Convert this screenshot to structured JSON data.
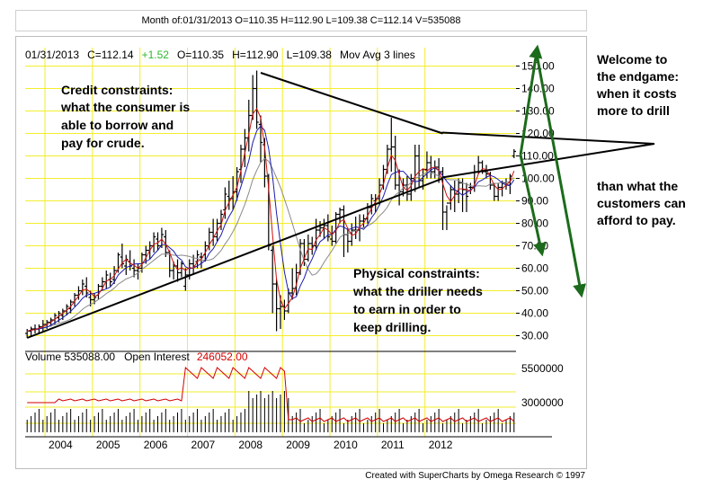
{
  "header": {
    "title": "Month of:01/31/2013 O=110.35 H=112.90 L=109.38 C=112.14 V=535088"
  },
  "info": {
    "date": "01/31/2013",
    "close": "C=112.14",
    "change": "+1.52",
    "open": "O=110.35",
    "high": "H=112.90",
    "low": "L=109.38",
    "study": "Mov Avg 3 lines"
  },
  "volume_info": {
    "volume": "Volume  535088.00",
    "oi_label": "Open Interest",
    "oi_value": "246052.00"
  },
  "annotations": {
    "credit": [
      "Credit constraints:",
      "what the consumer is",
      "able to borrow and",
      "pay for crude."
    ],
    "physical": [
      "Physical constraints:",
      "what the driller needs",
      "to earn in order to",
      "keep drilling."
    ],
    "right_top": [
      "Welcome to",
      "the endgame:",
      "when it costs",
      "more to drill"
    ],
    "right_bottom": [
      "than what the",
      "customers can",
      "afford to pay."
    ]
  },
  "footer": {
    "credit": "Created with SuperCharts by Omega Research © 1997"
  },
  "colors": {
    "grid": "#f2ee2c",
    "ma_fast": "#cc1111",
    "ma_mid": "#1a1ab0",
    "ma_slow": "#8a8a8a",
    "arrow": "#1c6b1c",
    "change": "#2db82d",
    "oi": "#d40000"
  },
  "chart_data": [
    {
      "type": "candlestick",
      "period": "monthly",
      "title": "Month of:01/31/2013 O=110.35 H=112.90 L=109.38 C=112.14 V=535088",
      "y_ticks": [
        150,
        140,
        130,
        120,
        110,
        100,
        90,
        80,
        70,
        60,
        50,
        40,
        30
      ],
      "y_tick_labels": [
        "150.00",
        "140.00",
        "130.00",
        "120.00",
        "110.00",
        "100.00",
        "90.00",
        "80.00",
        "70.00",
        "60.00",
        "50.00",
        "40.00",
        "30.00"
      ],
      "ylim": [
        25,
        155
      ],
      "x_tick_labels": [
        "2004",
        "2005",
        "2006",
        "2007",
        "2008",
        "2009",
        "2010",
        "2011",
        "2012"
      ],
      "x_start": "2003-08",
      "bars": [
        [
          31,
          33,
          29,
          32
        ],
        [
          32,
          34,
          30,
          33
        ],
        [
          33,
          35,
          31,
          33
        ],
        [
          33,
          35,
          31,
          34
        ],
        [
          34,
          37,
          32,
          35
        ],
        [
          35,
          37,
          33,
          36
        ],
        [
          36,
          38,
          34,
          37
        ],
        [
          37,
          40,
          35,
          39
        ],
        [
          38,
          41,
          36,
          40
        ],
        [
          39,
          42,
          37,
          41
        ],
        [
          41,
          44,
          39,
          43
        ],
        [
          42,
          46,
          40,
          45
        ],
        [
          45,
          49,
          43,
          48
        ],
        [
          48,
          52,
          46,
          50
        ],
        [
          50,
          55,
          48,
          53
        ],
        [
          52,
          56,
          47,
          49
        ],
        [
          47,
          50,
          43,
          46
        ],
        [
          46,
          49,
          44,
          47
        ],
        [
          48,
          53,
          46,
          52
        ],
        [
          52,
          56,
          50,
          54
        ],
        [
          54,
          59,
          51,
          57
        ],
        [
          55,
          58,
          52,
          54
        ],
        [
          55,
          61,
          53,
          59
        ],
        [
          59,
          67,
          58,
          66
        ],
        [
          65,
          71,
          60,
          62
        ],
        [
          61,
          66,
          57,
          64
        ],
        [
          63,
          68,
          59,
          61
        ],
        [
          60,
          64,
          56,
          59
        ],
        [
          59,
          62,
          55,
          60
        ],
        [
          60,
          67,
          58,
          66
        ],
        [
          66,
          70,
          62,
          68
        ],
        [
          68,
          72,
          64,
          70
        ],
        [
          70,
          76,
          67,
          74
        ],
        [
          73,
          76,
          68,
          70
        ],
        [
          70,
          78,
          69,
          75
        ],
        [
          74,
          77,
          65,
          67
        ],
        [
          67,
          68,
          56,
          59
        ],
        [
          59,
          63,
          55,
          61
        ],
        [
          61,
          64,
          54,
          58
        ],
        [
          58,
          63,
          56,
          62
        ],
        [
          52,
          60,
          50,
          57
        ],
        [
          57,
          64,
          55,
          62
        ],
        [
          62,
          66,
          57,
          61
        ],
        [
          63,
          68,
          60,
          66
        ],
        [
          65,
          67,
          60,
          65
        ],
        [
          66,
          72,
          63,
          70
        ],
        [
          70,
          78,
          68,
          76
        ],
        [
          76,
          82,
          70,
          74
        ],
        [
          74,
          82,
          72,
          80
        ],
        [
          80,
          86,
          77,
          84
        ],
        [
          86,
          96,
          82,
          93
        ],
        [
          92,
          99,
          86,
          91
        ],
        [
          91,
          101,
          86,
          94
        ],
        [
          94,
          105,
          90,
          103
        ],
        [
          104,
          115,
          98,
          113
        ],
        [
          113,
          122,
          105,
          118
        ],
        [
          118,
          135,
          112,
          128
        ],
        [
          128,
          146,
          126,
          140
        ],
        [
          140,
          148,
          122,
          125
        ],
        [
          124,
          128,
          107,
          116
        ],
        [
          115,
          118,
          96,
          101
        ],
        [
          101,
          102,
          68,
          70
        ],
        [
          68,
          70,
          40,
          53
        ],
        [
          53,
          55,
          32,
          42
        ],
        [
          42,
          48,
          33,
          43
        ],
        [
          43,
          46,
          37,
          41
        ],
        [
          41,
          51,
          40,
          49
        ],
        [
          49,
          60,
          46,
          51
        ],
        [
          51,
          62,
          48,
          58
        ],
        [
          58,
          73,
          57,
          71
        ],
        [
          71,
          73,
          61,
          64
        ],
        [
          64,
          75,
          63,
          71
        ],
        [
          71,
          74,
          66,
          70
        ],
        [
          70,
          82,
          68,
          77
        ],
        [
          77,
          81,
          74,
          78
        ],
        [
          78,
          82,
          73,
          79
        ],
        [
          79,
          84,
          72,
          74
        ],
        [
          73,
          79,
          70,
          72
        ],
        [
          72,
          85,
          71,
          84
        ],
        [
          84,
          87,
          80,
          86
        ],
        [
          86,
          88,
          65,
          75
        ],
        [
          75,
          78,
          67,
          72
        ],
        [
          72,
          80,
          70,
          77
        ],
        [
          77,
          83,
          73,
          77
        ],
        [
          77,
          84,
          72,
          81
        ],
        [
          81,
          84,
          78,
          82
        ],
        [
          82,
          89,
          80,
          87
        ],
        [
          87,
          93,
          84,
          91
        ],
        [
          90,
          93,
          85,
          91
        ],
        [
          91,
          100,
          88,
          97
        ],
        [
          97,
          106,
          95,
          104
        ],
        [
          104,
          115,
          102,
          113
        ],
        [
          113,
          127,
          103,
          114
        ],
        [
          114,
          119,
          95,
          97
        ],
        [
          97,
          104,
          88,
          94
        ],
        [
          94,
          100,
          92,
          97
        ],
        [
          97,
          101,
          90,
          93
        ],
        [
          93,
          102,
          90,
          100
        ],
        [
          100,
          115,
          94,
          110
        ],
        [
          110,
          115,
          96,
          99
        ],
        [
          99,
          104,
          95,
          104
        ],
        [
          104,
          112,
          100,
          107
        ],
        [
          107,
          110,
          100,
          103
        ],
        [
          103,
          108,
          100,
          105
        ],
        [
          105,
          109,
          98,
          103
        ],
        [
          103,
          105,
          77,
          85
        ],
        [
          85,
          88,
          77,
          89
        ],
        [
          89,
          97,
          86,
          95
        ],
        [
          95,
          99,
          85,
          93
        ],
        [
          93,
          100,
          89,
          98
        ],
        [
          98,
          100,
          85,
          95
        ],
        [
          95,
          98,
          85,
          92
        ],
        [
          96,
          98,
          93,
          96
        ],
        [
          96,
          106,
          94,
          103
        ],
        [
          103,
          110,
          102,
          107
        ],
        [
          107,
          108,
          102,
          103
        ],
        [
          103,
          106,
          100,
          102
        ],
        [
          102,
          103,
          95,
          97
        ],
        [
          97,
          98,
          90,
          92
        ],
        [
          92,
          98,
          90,
          96
        ],
        [
          96,
          99,
          92,
          98
        ],
        [
          98,
          100,
          95,
          97
        ],
        [
          97,
          102,
          93,
          101
        ],
        [
          110,
          113,
          109,
          112
        ]
      ],
      "bars_order": "open,high,low,close",
      "series": [
        {
          "name": "Mov Avg 3 lines"
        }
      ],
      "trendlines": [
        {
          "from": [
            "2003-08",
            29
          ],
          "to": [
            "2012-05",
            100
          ]
        },
        {
          "from": [
            "2008-07",
            147
          ],
          "to": [
            "2012-05",
            120
          ]
        }
      ],
      "volume_panel": {
        "labels": [
          "5500000",
          "3000000"
        ],
        "volume_label": "Volume  535088.00",
        "open_interest": "246052.00"
      }
    }
  ]
}
